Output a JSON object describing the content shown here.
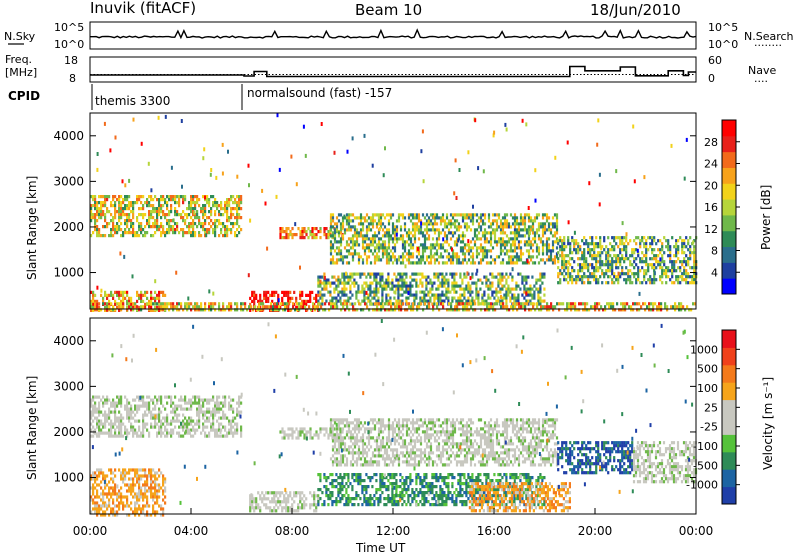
{
  "chart_data": [
    {
      "type": "line",
      "panel": "header",
      "station": "Inuvik (fitACF)",
      "beam": "Beam 10",
      "date": "18/Jun/2010",
      "left_label": "N.Sky",
      "left_ticks": [
        "10^5",
        "10^0"
      ],
      "right_label": "N.Search",
      "right_ticks": [
        "10^5",
        "10^0"
      ],
      "right_legend_style": "........"
    },
    {
      "type": "line",
      "panel": "frequency",
      "ylabel_lines": [
        "Freq.",
        "[MHz]"
      ],
      "ylim": [
        8,
        18
      ],
      "left_ticks": [
        "18",
        "8"
      ],
      "right_label": "Nave",
      "right_ticks": [
        "60",
        "0"
      ],
      "right_legend_style": "....",
      "freq_steps": [
        {
          "t": 0.0,
          "v": 10.8
        },
        {
          "t": 6.1,
          "v": 10.4
        },
        {
          "t": 6.5,
          "v": 12.2
        },
        {
          "t": 7.0,
          "v": 10.2
        },
        {
          "t": 18.8,
          "v": 10.2
        },
        {
          "t": 19.0,
          "v": 14.2
        },
        {
          "t": 19.6,
          "v": 12.5
        },
        {
          "t": 21.0,
          "v": 14.0
        },
        {
          "t": 21.6,
          "v": 10.5
        },
        {
          "t": 22.9,
          "v": 12.5
        },
        {
          "t": 23.5,
          "v": 10.6
        },
        {
          "t": 23.7,
          "v": 12.0
        },
        {
          "t": 24.0,
          "v": 12.0
        }
      ],
      "nave_dotted": 11.0
    },
    {
      "type": "table",
      "panel": "cpid",
      "label": "CPID",
      "segments": [
        {
          "t_start": 0,
          "text": "themis 3300"
        },
        {
          "t_start": 6.1,
          "text": "normalsound (fast) -157"
        }
      ]
    },
    {
      "type": "heatmap",
      "panel": "power",
      "ylabel": "Slant Range [km]",
      "xlabel": "",
      "ylim": [
        200,
        4500
      ],
      "yticks": [
        1000,
        2000,
        3000,
        4000
      ],
      "xlim": [
        0,
        24
      ],
      "colorbar_label": "Power [dB]",
      "colorbar_ticks": [
        "28",
        "24",
        "20",
        "16",
        "12",
        "8",
        "4"
      ],
      "colorbar_colors": [
        "#0000ff",
        "#1e3fa0",
        "#2a6e8c",
        "#2e8b57",
        "#6fb84a",
        "#b6d53a",
        "#f2d21a",
        "#f7a21b",
        "#f26a1b",
        "#e8201a",
        "#ff0000"
      ],
      "echo_regions": [
        {
          "t0": 0.0,
          "t1": 6.0,
          "r0": 1800,
          "r1": 2700,
          "level": 0.55
        },
        {
          "t0": 0.0,
          "t1": 3.0,
          "r0": 200,
          "r1": 600,
          "level": 0.65
        },
        {
          "t0": 6.3,
          "t1": 9.0,
          "r0": 200,
          "r1": 600,
          "level": 0.98
        },
        {
          "t0": 7.5,
          "t1": 10.0,
          "r0": 1800,
          "r1": 2000,
          "level": 0.7
        },
        {
          "t0": 9.5,
          "t1": 18.5,
          "r0": 1200,
          "r1": 2300,
          "level": 0.45
        },
        {
          "t0": 9.0,
          "t1": 18.0,
          "r0": 300,
          "r1": 1000,
          "level": 0.4
        },
        {
          "t0": 18.5,
          "t1": 24.0,
          "r0": 800,
          "r1": 1800,
          "level": 0.4
        },
        {
          "t0": 0.0,
          "t1": 24.0,
          "r0": 200,
          "r1": 350,
          "level": 0.6
        }
      ]
    },
    {
      "type": "heatmap",
      "panel": "velocity",
      "ylabel": "Slant Range [km]",
      "xlabel": "Time UT",
      "ylim": [
        200,
        4500
      ],
      "yticks": [
        1000,
        2000,
        3000,
        4000
      ],
      "xlim": [
        0,
        24
      ],
      "xticks": [
        "00:00",
        "04:00",
        "08:00",
        "12:00",
        "16:00",
        "20:00",
        "00:00"
      ],
      "colorbar_label": "Velocity [m s⁻¹]",
      "colorbar_ticks": [
        "1000",
        "500",
        "100",
        "25",
        "-25",
        "-100",
        "-500",
        "-1000"
      ],
      "colorbar_colors": [
        "#1f3fa8",
        "#1c64a3",
        "#2e8b57",
        "#55c23a",
        "#c8c8c0",
        "#c8c8c0",
        "#f6a41b",
        "#f47a1b",
        "#f0411b",
        "#e8101a"
      ],
      "echo_regions": [
        {
          "t0": 0.0,
          "t1": 6.0,
          "r0": 1900,
          "r1": 2800,
          "class": "ground"
        },
        {
          "t0": 0.0,
          "t1": 3.0,
          "r0": 200,
          "r1": 1200,
          "class": "neg"
        },
        {
          "t0": 6.3,
          "t1": 9.0,
          "r0": 300,
          "r1": 700,
          "class": "ground"
        },
        {
          "t0": 7.5,
          "t1": 10.0,
          "r0": 1900,
          "r1": 2100,
          "class": "ground"
        },
        {
          "t0": 9.5,
          "t1": 18.5,
          "r0": 1300,
          "r1": 2300,
          "class": "ground"
        },
        {
          "t0": 9.0,
          "t1": 18.0,
          "r0": 400,
          "r1": 1100,
          "class": "pos"
        },
        {
          "t0": 18.5,
          "t1": 21.5,
          "r0": 1100,
          "r1": 1800,
          "class": "posfast"
        },
        {
          "t0": 21.5,
          "t1": 24.0,
          "r0": 900,
          "r1": 1800,
          "class": "ground"
        },
        {
          "t0": 15.0,
          "t1": 19.0,
          "r0": 300,
          "r1": 900,
          "class": "neg"
        }
      ]
    }
  ]
}
